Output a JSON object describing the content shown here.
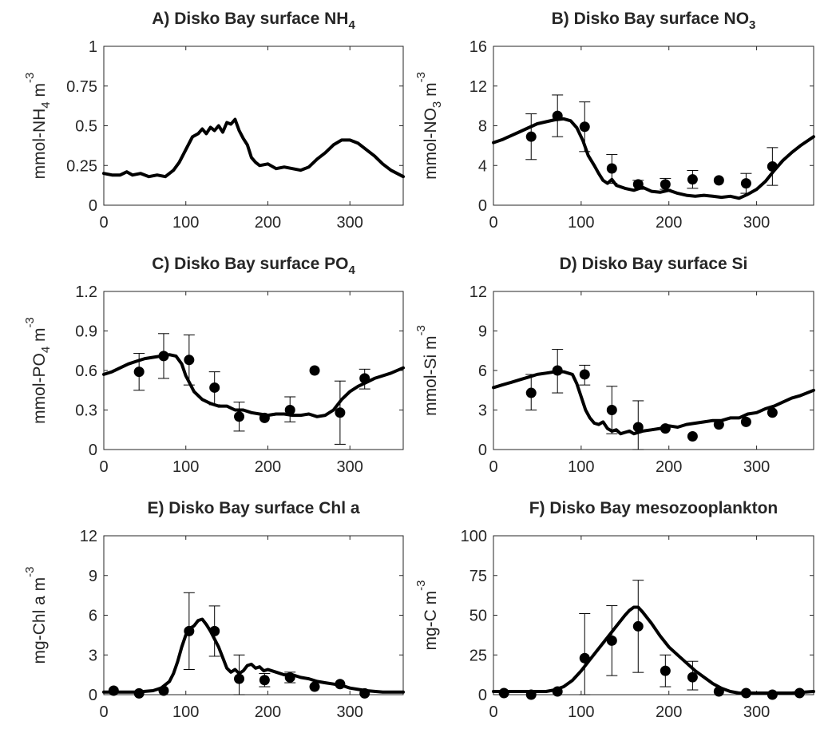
{
  "chart_data": [
    {
      "type": "line",
      "panel": "A",
      "title": "A) Disko Bay surface NH",
      "title_sub": "4",
      "ylabel_parts": [
        {
          "t": "mmol-NH"
        },
        {
          "t": "4",
          "sub": true
        },
        {
          "t": " m"
        },
        {
          "t": "-3",
          "sup": true
        }
      ],
      "xlim": [
        0,
        365
      ],
      "ylim": [
        0,
        1
      ],
      "yticks": [
        0,
        0.25,
        0.5,
        0.75,
        1
      ],
      "ytick_labels": [
        "0",
        "0.25",
        "0.5",
        "0.75",
        "1"
      ],
      "xticks": [
        0,
        100,
        200,
        300
      ],
      "xtick_labels": [
        "0",
        "100",
        "200",
        "300"
      ],
      "series": [
        {
          "role": "model",
          "x": [
            0,
            10,
            20,
            28,
            35,
            45,
            55,
            65,
            75,
            85,
            92,
            100,
            108,
            115,
            120,
            125,
            130,
            135,
            140,
            145,
            150,
            155,
            160,
            165,
            170,
            175,
            180,
            185,
            190,
            200,
            210,
            220,
            230,
            240,
            250,
            260,
            270,
            280,
            290,
            300,
            310,
            320,
            330,
            340,
            350,
            365
          ],
          "y": [
            0.2,
            0.19,
            0.19,
            0.21,
            0.19,
            0.2,
            0.18,
            0.19,
            0.18,
            0.22,
            0.27,
            0.35,
            0.43,
            0.45,
            0.48,
            0.45,
            0.49,
            0.47,
            0.5,
            0.46,
            0.52,
            0.51,
            0.54,
            0.47,
            0.42,
            0.38,
            0.3,
            0.27,
            0.25,
            0.26,
            0.23,
            0.24,
            0.23,
            0.22,
            0.24,
            0.29,
            0.33,
            0.38,
            0.41,
            0.41,
            0.39,
            0.35,
            0.31,
            0.26,
            0.22,
            0.18
          ]
        }
      ],
      "observations": []
    },
    {
      "type": "line",
      "panel": "B",
      "title": "B) Disko Bay surface NO",
      "title_sub": "3",
      "ylabel_parts": [
        {
          "t": "mmol-NO"
        },
        {
          "t": "3",
          "sub": true
        },
        {
          "t": " m"
        },
        {
          "t": "-3",
          "sup": true
        }
      ],
      "xlim": [
        0,
        365
      ],
      "ylim": [
        0,
        16
      ],
      "yticks": [
        0,
        4,
        8,
        12,
        16
      ],
      "ytick_labels": [
        "0",
        "4",
        "8",
        "12",
        "16"
      ],
      "xticks": [
        0,
        100,
        200,
        300
      ],
      "xtick_labels": [
        "0",
        "100",
        "200",
        "300"
      ],
      "series": [
        {
          "role": "model",
          "x": [
            0,
            10,
            20,
            30,
            40,
            50,
            60,
            70,
            80,
            88,
            95,
            102,
            108,
            115,
            120,
            125,
            130,
            135,
            140,
            150,
            160,
            170,
            180,
            190,
            200,
            210,
            220,
            230,
            240,
            250,
            260,
            270,
            280,
            290,
            300,
            310,
            320,
            330,
            340,
            350,
            365
          ],
          "y": [
            6.3,
            6.6,
            7.0,
            7.4,
            7.8,
            8.2,
            8.4,
            8.6,
            8.7,
            8.5,
            7.8,
            6.5,
            5.0,
            4.0,
            3.2,
            2.5,
            2.2,
            2.6,
            2.0,
            1.7,
            1.5,
            1.8,
            1.4,
            1.3,
            1.5,
            1.2,
            1.0,
            0.9,
            1.0,
            0.9,
            0.8,
            0.9,
            0.7,
            1.1,
            1.6,
            2.4,
            3.5,
            4.5,
            5.3,
            6.0,
            6.9
          ]
        }
      ],
      "observations": [
        {
          "x": 43,
          "y": 6.9,
          "lo": 4.6,
          "hi": 9.2
        },
        {
          "x": 73,
          "y": 9.0,
          "lo": 6.9,
          "hi": 11.1
        },
        {
          "x": 104,
          "y": 7.9,
          "lo": 5.4,
          "hi": 10.4
        },
        {
          "x": 135,
          "y": 3.7,
          "lo": 2.2,
          "hi": 5.1
        },
        {
          "x": 165,
          "y": 2.1,
          "lo": 1.6,
          "hi": 2.5
        },
        {
          "x": 196,
          "y": 2.1,
          "lo": 1.6,
          "hi": 2.7
        },
        {
          "x": 227,
          "y": 2.6,
          "lo": 1.7,
          "hi": 3.5
        },
        {
          "x": 257,
          "y": 2.5,
          "lo": null,
          "hi": null
        },
        {
          "x": 288,
          "y": 2.2,
          "lo": 1.2,
          "hi": 3.2
        },
        {
          "x": 318,
          "y": 3.9,
          "lo": 2.0,
          "hi": 5.8
        }
      ]
    },
    {
      "type": "line",
      "panel": "C",
      "title": "C) Disko Bay surface PO",
      "title_sub": "4",
      "ylabel_parts": [
        {
          "t": "mmol-PO"
        },
        {
          "t": "4",
          "sub": true
        },
        {
          "t": " m"
        },
        {
          "t": "-3",
          "sup": true
        }
      ],
      "xlim": [
        0,
        365
      ],
      "ylim": [
        0,
        1.2
      ],
      "yticks": [
        0,
        0.3,
        0.6,
        0.9,
        1.2
      ],
      "ytick_labels": [
        "0",
        "0.3",
        "0.6",
        "0.9",
        "1.2"
      ],
      "xticks": [
        0,
        100,
        200,
        300
      ],
      "xtick_labels": [
        "0",
        "100",
        "200",
        "300"
      ],
      "series": [
        {
          "role": "model",
          "x": [
            0,
            10,
            20,
            30,
            40,
            50,
            60,
            70,
            80,
            88,
            95,
            100,
            105,
            110,
            115,
            120,
            130,
            140,
            150,
            160,
            170,
            180,
            190,
            200,
            210,
            220,
            230,
            240,
            250,
            260,
            270,
            280,
            290,
            300,
            310,
            320,
            330,
            340,
            350,
            365
          ],
          "y": [
            0.57,
            0.59,
            0.62,
            0.65,
            0.67,
            0.69,
            0.7,
            0.71,
            0.72,
            0.71,
            0.65,
            0.56,
            0.5,
            0.44,
            0.41,
            0.38,
            0.35,
            0.33,
            0.33,
            0.3,
            0.3,
            0.28,
            0.27,
            0.26,
            0.27,
            0.27,
            0.26,
            0.26,
            0.27,
            0.25,
            0.26,
            0.3,
            0.38,
            0.44,
            0.48,
            0.51,
            0.54,
            0.56,
            0.58,
            0.62
          ]
        }
      ],
      "observations": [
        {
          "x": 43,
          "y": 0.59,
          "lo": 0.45,
          "hi": 0.73
        },
        {
          "x": 73,
          "y": 0.71,
          "lo": 0.54,
          "hi": 0.88
        },
        {
          "x": 104,
          "y": 0.68,
          "lo": 0.49,
          "hi": 0.87
        },
        {
          "x": 135,
          "y": 0.47,
          "lo": 0.34,
          "hi": 0.59
        },
        {
          "x": 165,
          "y": 0.25,
          "lo": 0.14,
          "hi": 0.36
        },
        {
          "x": 196,
          "y": 0.24,
          "lo": null,
          "hi": null
        },
        {
          "x": 227,
          "y": 0.3,
          "lo": 0.21,
          "hi": 0.4
        },
        {
          "x": 257,
          "y": 0.6,
          "lo": null,
          "hi": null
        },
        {
          "x": 288,
          "y": 0.28,
          "lo": 0.04,
          "hi": 0.52
        },
        {
          "x": 318,
          "y": 0.54,
          "lo": 0.46,
          "hi": 0.61
        }
      ]
    },
    {
      "type": "line",
      "panel": "D",
      "title": "D) Disko Bay surface Si",
      "title_sub": "",
      "ylabel_parts": [
        {
          "t": "mmol-Si m"
        },
        {
          "t": "-3",
          "sup": true
        }
      ],
      "xlim": [
        0,
        365
      ],
      "ylim": [
        0,
        12
      ],
      "yticks": [
        0,
        3,
        6,
        9,
        12
      ],
      "ytick_labels": [
        "0",
        "3",
        "6",
        "9",
        "12"
      ],
      "xticks": [
        0,
        100,
        200,
        300
      ],
      "xtick_labels": [
        "0",
        "100",
        "200",
        "300"
      ],
      "series": [
        {
          "role": "model",
          "x": [
            0,
            10,
            20,
            30,
            40,
            50,
            60,
            70,
            80,
            90,
            95,
            100,
            105,
            110,
            115,
            120,
            125,
            130,
            135,
            140,
            145,
            150,
            155,
            160,
            170,
            180,
            190,
            200,
            210,
            220,
            230,
            240,
            250,
            260,
            270,
            280,
            290,
            300,
            310,
            320,
            330,
            340,
            350,
            365
          ],
          "y": [
            4.7,
            4.9,
            5.1,
            5.3,
            5.5,
            5.7,
            5.8,
            5.9,
            5.9,
            5.7,
            5.0,
            4.0,
            3.0,
            2.4,
            2.0,
            1.9,
            2.1,
            1.6,
            1.4,
            1.5,
            1.2,
            1.3,
            1.4,
            1.2,
            1.4,
            1.5,
            1.6,
            1.8,
            1.7,
            1.9,
            2.0,
            2.1,
            2.2,
            2.2,
            2.4,
            2.4,
            2.7,
            2.8,
            3.1,
            3.3,
            3.6,
            3.9,
            4.1,
            4.5
          ]
        }
      ],
      "observations": [
        {
          "x": 43,
          "y": 4.3,
          "lo": 3.0,
          "hi": 5.7
        },
        {
          "x": 73,
          "y": 6.0,
          "lo": 4.3,
          "hi": 7.6
        },
        {
          "x": 104,
          "y": 5.7,
          "lo": 4.9,
          "hi": 6.4
        },
        {
          "x": 135,
          "y": 3.0,
          "lo": 1.2,
          "hi": 4.8
        },
        {
          "x": 165,
          "y": 1.7,
          "lo": 0.0,
          "hi": 3.7
        },
        {
          "x": 196,
          "y": 1.6,
          "lo": null,
          "hi": null
        },
        {
          "x": 227,
          "y": 1.0,
          "lo": null,
          "hi": null
        },
        {
          "x": 257,
          "y": 1.9,
          "lo": null,
          "hi": null
        },
        {
          "x": 288,
          "y": 2.1,
          "lo": null,
          "hi": null
        },
        {
          "x": 318,
          "y": 2.8,
          "lo": null,
          "hi": null
        }
      ]
    },
    {
      "type": "line",
      "panel": "E",
      "title": "E) Disko Bay  surface Chl a",
      "title_sub": "",
      "ylabel_parts": [
        {
          "t": "mg-Chl a m"
        },
        {
          "t": "-3",
          "sup": true
        }
      ],
      "xlim": [
        0,
        365
      ],
      "ylim": [
        0,
        12
      ],
      "yticks": [
        0,
        3,
        6,
        9,
        12
      ],
      "ytick_labels": [
        "0",
        "3",
        "6",
        "9",
        "12"
      ],
      "xticks": [
        0,
        100,
        200,
        300
      ],
      "xtick_labels": [
        "0",
        "100",
        "200",
        "300"
      ],
      "series": [
        {
          "role": "model",
          "x": [
            0,
            20,
            40,
            60,
            70,
            80,
            85,
            90,
            95,
            100,
            105,
            110,
            115,
            120,
            125,
            130,
            135,
            140,
            145,
            150,
            155,
            160,
            165,
            170,
            175,
            180,
            185,
            190,
            195,
            200,
            210,
            220,
            230,
            240,
            250,
            260,
            270,
            280,
            290,
            300,
            310,
            320,
            340,
            365
          ],
          "y": [
            0.2,
            0.2,
            0.2,
            0.3,
            0.5,
            1.0,
            1.6,
            2.5,
            3.6,
            4.5,
            5.0,
            5.2,
            5.6,
            5.7,
            5.3,
            4.8,
            4.2,
            3.6,
            2.8,
            2.0,
            1.7,
            1.9,
            1.6,
            1.8,
            2.2,
            2.3,
            2.0,
            2.1,
            1.8,
            1.9,
            1.7,
            1.5,
            1.5,
            1.3,
            1.2,
            1.0,
            0.9,
            0.8,
            0.7,
            0.5,
            0.4,
            0.3,
            0.2,
            0.2
          ]
        }
      ],
      "observations": [
        {
          "x": 12,
          "y": 0.3,
          "lo": null,
          "hi": null
        },
        {
          "x": 43,
          "y": 0.1,
          "lo": null,
          "hi": null
        },
        {
          "x": 73,
          "y": 0.3,
          "lo": null,
          "hi": null
        },
        {
          "x": 104,
          "y": 4.8,
          "lo": 1.9,
          "hi": 7.7
        },
        {
          "x": 135,
          "y": 4.8,
          "lo": 2.9,
          "hi": 6.7
        },
        {
          "x": 165,
          "y": 1.2,
          "lo": 0.0,
          "hi": 3.0
        },
        {
          "x": 196,
          "y": 1.1,
          "lo": 0.6,
          "hi": 1.6
        },
        {
          "x": 227,
          "y": 1.3,
          "lo": 0.9,
          "hi": 1.7
        },
        {
          "x": 257,
          "y": 0.6,
          "lo": null,
          "hi": null
        },
        {
          "x": 288,
          "y": 0.8,
          "lo": null,
          "hi": null
        },
        {
          "x": 318,
          "y": 0.1,
          "lo": null,
          "hi": null
        }
      ]
    },
    {
      "type": "line",
      "panel": "F",
      "title": "F) Disko Bay mesozooplankton",
      "title_sub": "",
      "ylabel_parts": [
        {
          "t": "mg-C m"
        },
        {
          "t": "-3",
          "sup": true
        }
      ],
      "xlim": [
        0,
        365
      ],
      "ylim": [
        0,
        100
      ],
      "yticks": [
        0,
        25,
        50,
        75,
        100
      ],
      "ytick_labels": [
        "0",
        "25",
        "50",
        "75",
        "100"
      ],
      "xticks": [
        0,
        100,
        200,
        300
      ],
      "xtick_labels": [
        "0",
        "100",
        "200",
        "300"
      ],
      "series": [
        {
          "role": "model",
          "x": [
            0,
            20,
            40,
            60,
            70,
            80,
            90,
            100,
            110,
            120,
            130,
            140,
            150,
            155,
            160,
            165,
            170,
            180,
            190,
            200,
            210,
            220,
            230,
            240,
            250,
            260,
            270,
            280,
            290,
            300,
            320,
            340,
            365
          ],
          "y": [
            2,
            2,
            2,
            2,
            3,
            5,
            9,
            15,
            22,
            29,
            36,
            43,
            50,
            53,
            55,
            55,
            52,
            45,
            37,
            30,
            25,
            20,
            15,
            11,
            7,
            4,
            2,
            1,
            1,
            1,
            1,
            1,
            2
          ]
        }
      ],
      "observations": [
        {
          "x": 12,
          "y": 1,
          "lo": null,
          "hi": null
        },
        {
          "x": 43,
          "y": 0,
          "lo": null,
          "hi": null
        },
        {
          "x": 73,
          "y": 2,
          "lo": null,
          "hi": null
        },
        {
          "x": 104,
          "y": 23,
          "lo": 0,
          "hi": 51
        },
        {
          "x": 135,
          "y": 34,
          "lo": 12,
          "hi": 56
        },
        {
          "x": 165,
          "y": 43,
          "lo": 14,
          "hi": 72
        },
        {
          "x": 196,
          "y": 15,
          "lo": 5,
          "hi": 25
        },
        {
          "x": 227,
          "y": 11,
          "lo": 3,
          "hi": 21
        },
        {
          "x": 257,
          "y": 2,
          "lo": null,
          "hi": null
        },
        {
          "x": 288,
          "y": 1,
          "lo": null,
          "hi": null
        },
        {
          "x": 318,
          "y": 0,
          "lo": null,
          "hi": null
        },
        {
          "x": 349,
          "y": 1,
          "lo": null,
          "hi": null
        }
      ]
    }
  ]
}
